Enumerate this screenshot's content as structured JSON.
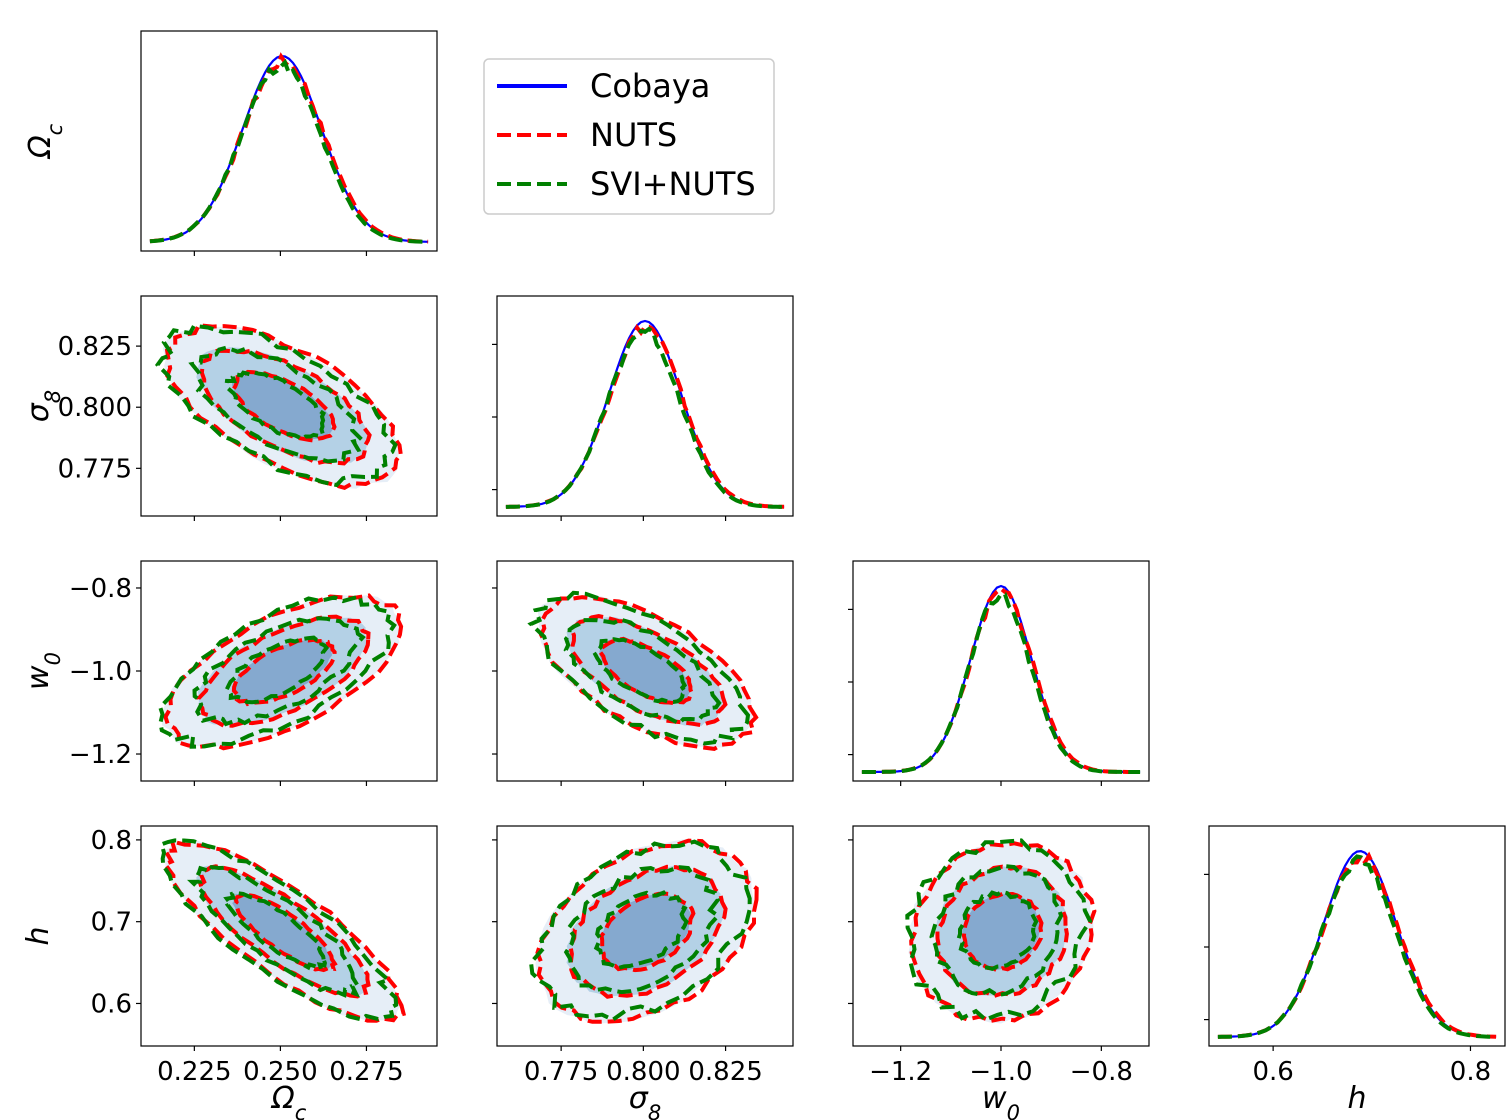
{
  "chart_data": {
    "type": "corner",
    "parameters": [
      {
        "key": "Oc",
        "label": "Ω",
        "sub": "c",
        "range": [
          0.2095,
          0.2955
        ],
        "ticks": [
          0.225,
          0.25,
          0.275
        ],
        "tick_labels": [
          "0.225",
          "0.250",
          "0.275"
        ]
      },
      {
        "key": "s8",
        "label": "σ",
        "sub": "8",
        "range": [
          0.7555,
          0.8455
        ],
        "ticks": [
          0.775,
          0.8,
          0.825
        ],
        "tick_labels": [
          "0.775",
          "0.800",
          "0.825"
        ]
      },
      {
        "key": "w0",
        "label": "w",
        "sub": "0",
        "range": [
          -1.295,
          -0.705
        ],
        "ticks": [
          -1.2,
          -1.0,
          -0.8
        ],
        "tick_labels": [
          "−1.2",
          "−1.0",
          "−0.8"
        ]
      },
      {
        "key": "h",
        "label": "h",
        "sub": "",
        "range": [
          0.535,
          0.835
        ],
        "ticks": [
          0.6,
          0.8
        ],
        "tick_labels": [
          "0.6",
          "0.8"
        ]
      }
    ],
    "y_axis_ranges": {
      "s8": [
        0.7555,
        0.8455
      ],
      "w0": [
        -1.265,
        -0.735
      ],
      "h": [
        0.548,
        0.817
      ]
    },
    "y_axis_ticks": {
      "s8": {
        "ticks": [
          0.775,
          0.8,
          0.825
        ],
        "labels": [
          "0.775",
          "0.800",
          "0.825"
        ]
      },
      "w0": {
        "ticks": [
          -1.2,
          -1.0,
          -0.8
        ],
        "labels": [
          "−1.2",
          "−1.0",
          "−0.8"
        ]
      },
      "h": {
        "ticks": [
          0.6,
          0.7,
          0.8
        ],
        "labels": [
          "0.6",
          "0.7",
          "0.8"
        ]
      }
    },
    "series": [
      {
        "name": "Cobaya",
        "color": "#0000ff",
        "style": "solid"
      },
      {
        "name": "NUTS",
        "color": "#ff0000",
        "style": "dashed"
      },
      {
        "name": "SVI+NUTS",
        "color": "#008000",
        "style": "dashed"
      }
    ],
    "posteriors": {
      "Oc": {
        "mean": 0.2505,
        "sd": 0.0115
      },
      "s8": {
        "mean": 0.8005,
        "sd": 0.011
      },
      "w0": {
        "mean": -1.0,
        "sd": 0.061
      },
      "h": {
        "mean": 0.688,
        "sd": 0.037
      }
    },
    "correlations": {
      "s8|Oc": -0.6,
      "w0|Oc": 0.6,
      "w0|s8": -0.6,
      "h|Oc": -0.82,
      "h|s8": 0.35,
      "h|w0": 0.1
    },
    "legend_position": "upper-center"
  },
  "colors": {
    "fill_outer": "#e6eef7",
    "fill_mid": "#b4d1e6",
    "fill_inner": "#85a9cf"
  }
}
